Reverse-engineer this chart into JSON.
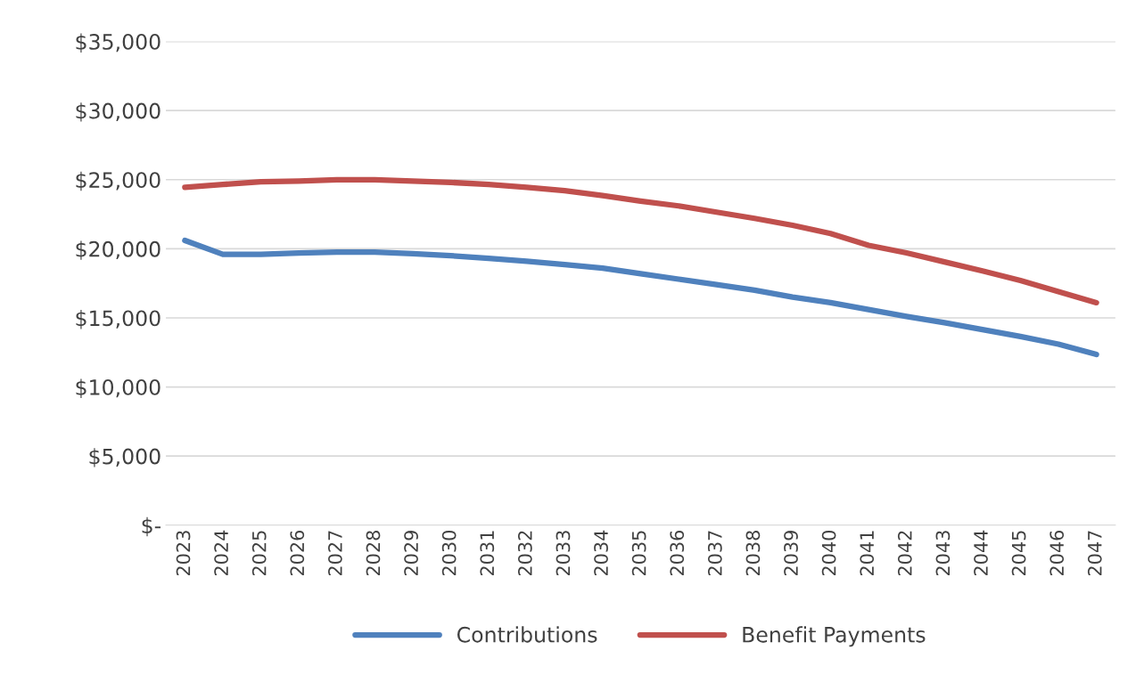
{
  "chart_data": {
    "type": "line",
    "categories": [
      "2023",
      "2024",
      "2025",
      "2026",
      "2027",
      "2028",
      "2029",
      "2030",
      "2031",
      "2032",
      "2033",
      "2034",
      "2035",
      "2036",
      "2037",
      "2038",
      "2039",
      "2040",
      "2041",
      "2042",
      "2043",
      "2044",
      "2045",
      "2046",
      "2047"
    ],
    "series": [
      {
        "name": "Contributions",
        "color": "#4f81bd",
        "values": [
          20600,
          19600,
          19600,
          19700,
          19750,
          19750,
          19650,
          19500,
          19300,
          19100,
          18850,
          18600,
          18200,
          17800,
          17400,
          17000,
          16500,
          16100,
          15600,
          15100,
          14650,
          14150,
          13650,
          13100,
          12350
        ]
      },
      {
        "name": "Benefit Payments",
        "color": "#c0504d",
        "values": [
          24450,
          24650,
          24850,
          24900,
          25000,
          25000,
          24900,
          24800,
          24650,
          24450,
          24200,
          23850,
          23450,
          23100,
          22650,
          22200,
          21700,
          21100,
          20250,
          19700,
          19050,
          18400,
          17700,
          16900,
          16100
        ]
      }
    ],
    "ylim": [
      0,
      35000
    ],
    "yticks": [
      {
        "value": 0,
        "label": "$-"
      },
      {
        "value": 5000,
        "label": "$5,000"
      },
      {
        "value": 10000,
        "label": "$10,000"
      },
      {
        "value": 15000,
        "label": "$15,000"
      },
      {
        "value": 20000,
        "label": "$20,000"
      },
      {
        "value": 25000,
        "label": "$25,000"
      },
      {
        "value": 30000,
        "label": "$30,000"
      },
      {
        "value": 35000,
        "label": "$35,000"
      }
    ],
    "grid": "y",
    "legend": "bottom",
    "marker": "none",
    "line_style": "solid"
  }
}
